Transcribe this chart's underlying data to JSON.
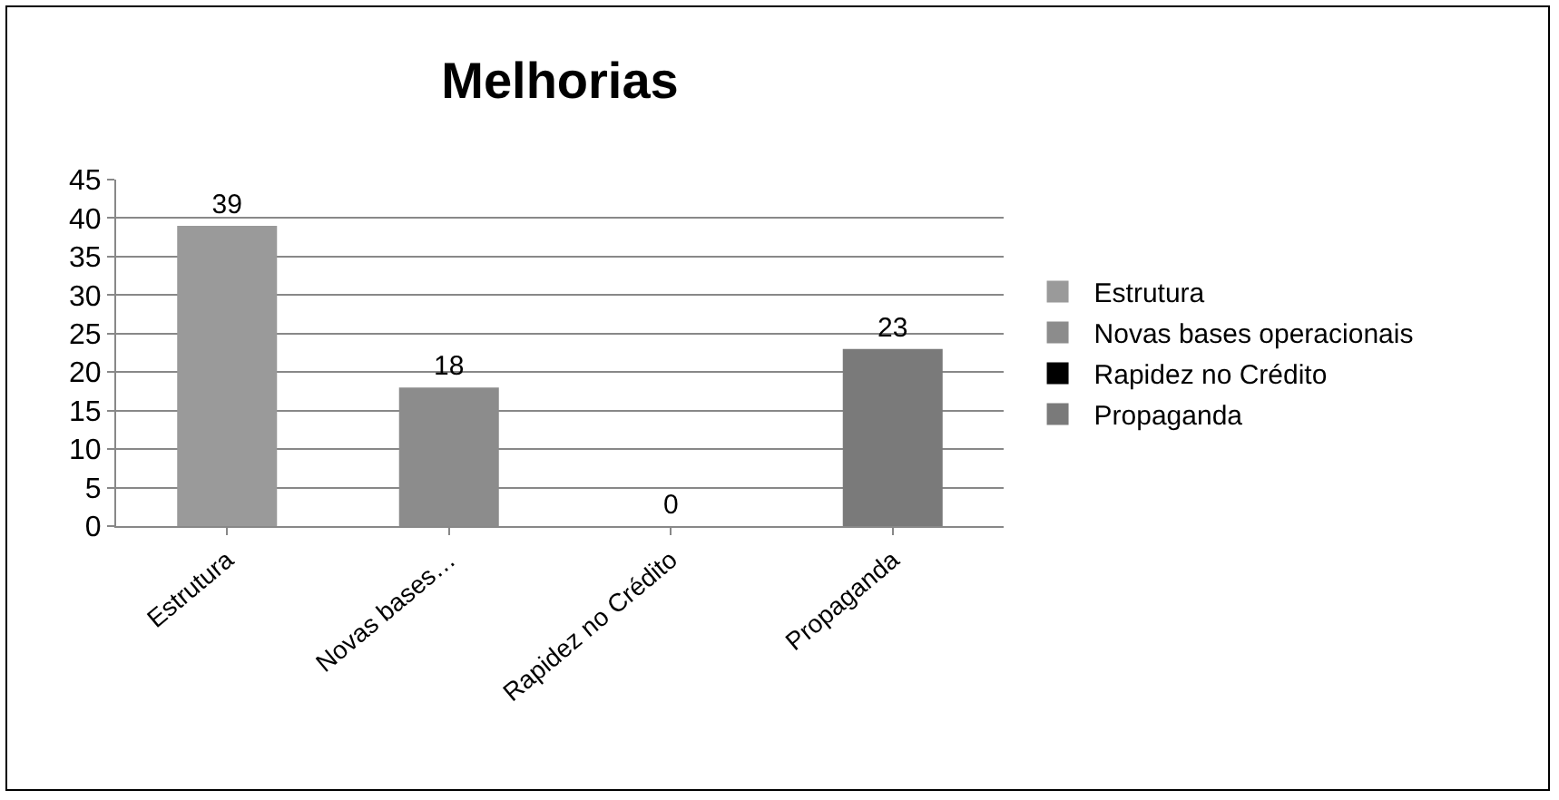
{
  "chart_data": {
    "type": "bar",
    "title": "Melhorias",
    "categories": [
      "Estrutura",
      "Novas bases…",
      "Rapidez no Crédito",
      "Propaganda"
    ],
    "series": [
      {
        "name": "Estrutura",
        "color": "#9a9a9a",
        "values": [
          39,
          null,
          null,
          null
        ]
      },
      {
        "name": "Novas bases operacionais",
        "color": "#8c8c8c",
        "values": [
          null,
          18,
          null,
          null
        ]
      },
      {
        "name": "Rapidez no Crédito",
        "color": "#000000",
        "values": [
          null,
          null,
          0,
          null
        ]
      },
      {
        "name": "Propaganda",
        "color": "#7a7a7a",
        "values": [
          null,
          null,
          null,
          23
        ]
      }
    ],
    "ylim": [
      0,
      45
    ],
    "yticks": [
      0,
      5,
      10,
      15,
      20,
      25,
      30,
      35,
      40,
      45
    ],
    "grid": "y",
    "legend": "right",
    "data_labels": true
  }
}
